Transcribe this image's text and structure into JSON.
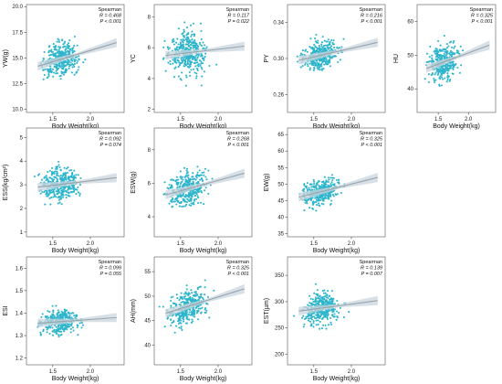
{
  "figure": {
    "xlabel": "Body Weight(kg)",
    "point_color": "#2eb5cc",
    "line_color": "#9aa3aa",
    "band_color": "#c9d6de"
  },
  "chart_data": [
    {
      "type": "scatter",
      "ylabel": "YW(g)",
      "xlim": [
        1.15,
        2.45
      ],
      "ylim": [
        9.7,
        20.2
      ],
      "xticks": [
        1.5,
        2.0
      ],
      "yticks": [
        10.0,
        12.5,
        15.0,
        17.5,
        20.0
      ],
      "ytick_labels": [
        "10.0",
        "12.5",
        "15.0",
        "17.5",
        "20.0"
      ],
      "stat_method": "Spearman",
      "stat_r": "R = 0.468",
      "stat_p": "P < 0.001",
      "fit_start": 14.2,
      "fit_end": 16.5,
      "y_center": 14.9,
      "y_spread": 1.7
    },
    {
      "type": "scatter",
      "ylabel": "YC",
      "xlim": [
        1.15,
        2.45
      ],
      "ylim": [
        1.8,
        8.8
      ],
      "xticks": [
        1.5,
        2.0
      ],
      "yticks": [
        2,
        4,
        6,
        8
      ],
      "ytick_labels": [
        "2",
        "4",
        "6",
        "8"
      ],
      "stat_method": "Spearman",
      "stat_r": "R = 0.117",
      "stat_p": "P = 0.022",
      "fit_start": 5.5,
      "fit_end": 6.1,
      "y_center": 5.7,
      "y_spread": 1.6
    },
    {
      "type": "scatter",
      "ylabel": "PY",
      "xlim": [
        1.15,
        2.45
      ],
      "ylim": [
        0.24,
        0.36
      ],
      "xticks": [
        1.5,
        2.0
      ],
      "yticks": [
        0.26,
        0.3,
        0.34
      ],
      "ytick_labels": [
        "0.26",
        "0.30",
        "0.34"
      ],
      "stat_method": "Spearman",
      "stat_r": "R = 0.216",
      "stat_p": "P < 0.001",
      "fit_start": 0.298,
      "fit_end": 0.318,
      "y_center": 0.305,
      "y_spread": 0.018
    },
    {
      "type": "scatter",
      "ylabel": "HU",
      "xlim": [
        1.15,
        2.45
      ],
      "ylim": [
        33,
        65
      ],
      "xticks": [
        1.5,
        2.0
      ],
      "yticks": [
        40,
        50,
        60
      ],
      "ytick_labels": [
        "40",
        "50",
        "60"
      ],
      "stat_method": "Spearman",
      "stat_r": "R = 0.325",
      "stat_p": "P < 0.001",
      "fit_start": 46.0,
      "fit_end": 53.0,
      "y_center": 49.0,
      "y_spread": 5.5
    },
    {
      "type": "scatter",
      "ylabel": "ESS(kg/cm²)",
      "xlim": [
        1.15,
        2.45
      ],
      "ylim": [
        0.8,
        5.4
      ],
      "xticks": [
        1.5,
        2.0
      ],
      "yticks": [
        1,
        2,
        3,
        4,
        5
      ],
      "ytick_labels": [
        "1",
        "2",
        "3",
        "4",
        "5"
      ],
      "stat_method": "Spearman",
      "stat_r": "R = 0.092",
      "stat_p": "P = 0.074",
      "fit_start": 2.9,
      "fit_end": 3.3,
      "y_center": 3.1,
      "y_spread": 0.8
    },
    {
      "type": "scatter",
      "ylabel": "ESW(g)",
      "xlim": [
        1.15,
        2.45
      ],
      "ylim": [
        2.8,
        9.3
      ],
      "xticks": [
        1.5,
        2.0
      ],
      "yticks": [
        4,
        6,
        8
      ],
      "ytick_labels": [
        "4",
        "6",
        "8"
      ],
      "stat_method": "Spearman",
      "stat_r": "R = 0.268",
      "stat_p": "P < 0.001",
      "fit_start": 5.3,
      "fit_end": 6.6,
      "y_center": 5.8,
      "y_spread": 1.1
    },
    {
      "type": "scatter",
      "ylabel": "EW(g)",
      "xlim": [
        1.15,
        2.45
      ],
      "ylim": [
        34,
        67
      ],
      "xticks": [
        1.5,
        2.0
      ],
      "yticks": [
        35,
        40,
        45,
        50,
        55,
        60,
        65
      ],
      "ytick_labels": [
        "35",
        "40",
        "45",
        "50",
        "55",
        "60",
        "65"
      ],
      "stat_method": "Spearman",
      "stat_r": "R = 0.325",
      "stat_p": "P < 0.001",
      "fit_start": 46.0,
      "fit_end": 52.0,
      "y_center": 48.5,
      "y_spread": 4.5
    },
    {
      "type": "scatter",
      "ylabel": "ESI",
      "xlim": [
        1.15,
        2.45
      ],
      "ylim": [
        1.17,
        1.65
      ],
      "xticks": [
        1.5,
        2.0
      ],
      "yticks": [
        1.2,
        1.3,
        1.4,
        1.5,
        1.6
      ],
      "ytick_labels": [
        "1.2",
        "1.3",
        "1.4",
        "1.5",
        "1.6"
      ],
      "stat_method": "Spearman",
      "stat_r": "R = 0.099",
      "stat_p": "P = 0.055",
      "fit_start": 1.355,
      "fit_end": 1.38,
      "y_center": 1.37,
      "y_spread": 0.06
    },
    {
      "type": "scatter",
      "ylabel": "AH(mm)",
      "xlim": [
        1.15,
        2.45
      ],
      "ylim": [
        36,
        58
      ],
      "xticks": [
        1.5,
        2.0
      ],
      "yticks": [
        40,
        45,
        50,
        55
      ],
      "ytick_labels": [
        "40",
        "45",
        "50",
        "55"
      ],
      "stat_method": "Spearman",
      "stat_r": "R = 0.325",
      "stat_p": "P < 0.001",
      "fit_start": 46.5,
      "fit_end": 51.5,
      "y_center": 48.0,
      "y_spread": 3.8
    },
    {
      "type": "scatter",
      "ylabel": "EST(µm)",
      "xlim": [
        1.15,
        2.45
      ],
      "ylim": [
        180,
        385
      ],
      "xticks": [
        1.5,
        2.0
      ],
      "yticks": [
        200,
        250,
        300,
        350
      ],
      "ytick_labels": [
        "200",
        "250",
        "300",
        "350"
      ],
      "stat_method": "Spearman",
      "stat_r": "R = 0.139",
      "stat_p": "P = 0.007",
      "fit_start": 282,
      "fit_end": 302,
      "y_center": 290,
      "y_spread": 34
    }
  ]
}
